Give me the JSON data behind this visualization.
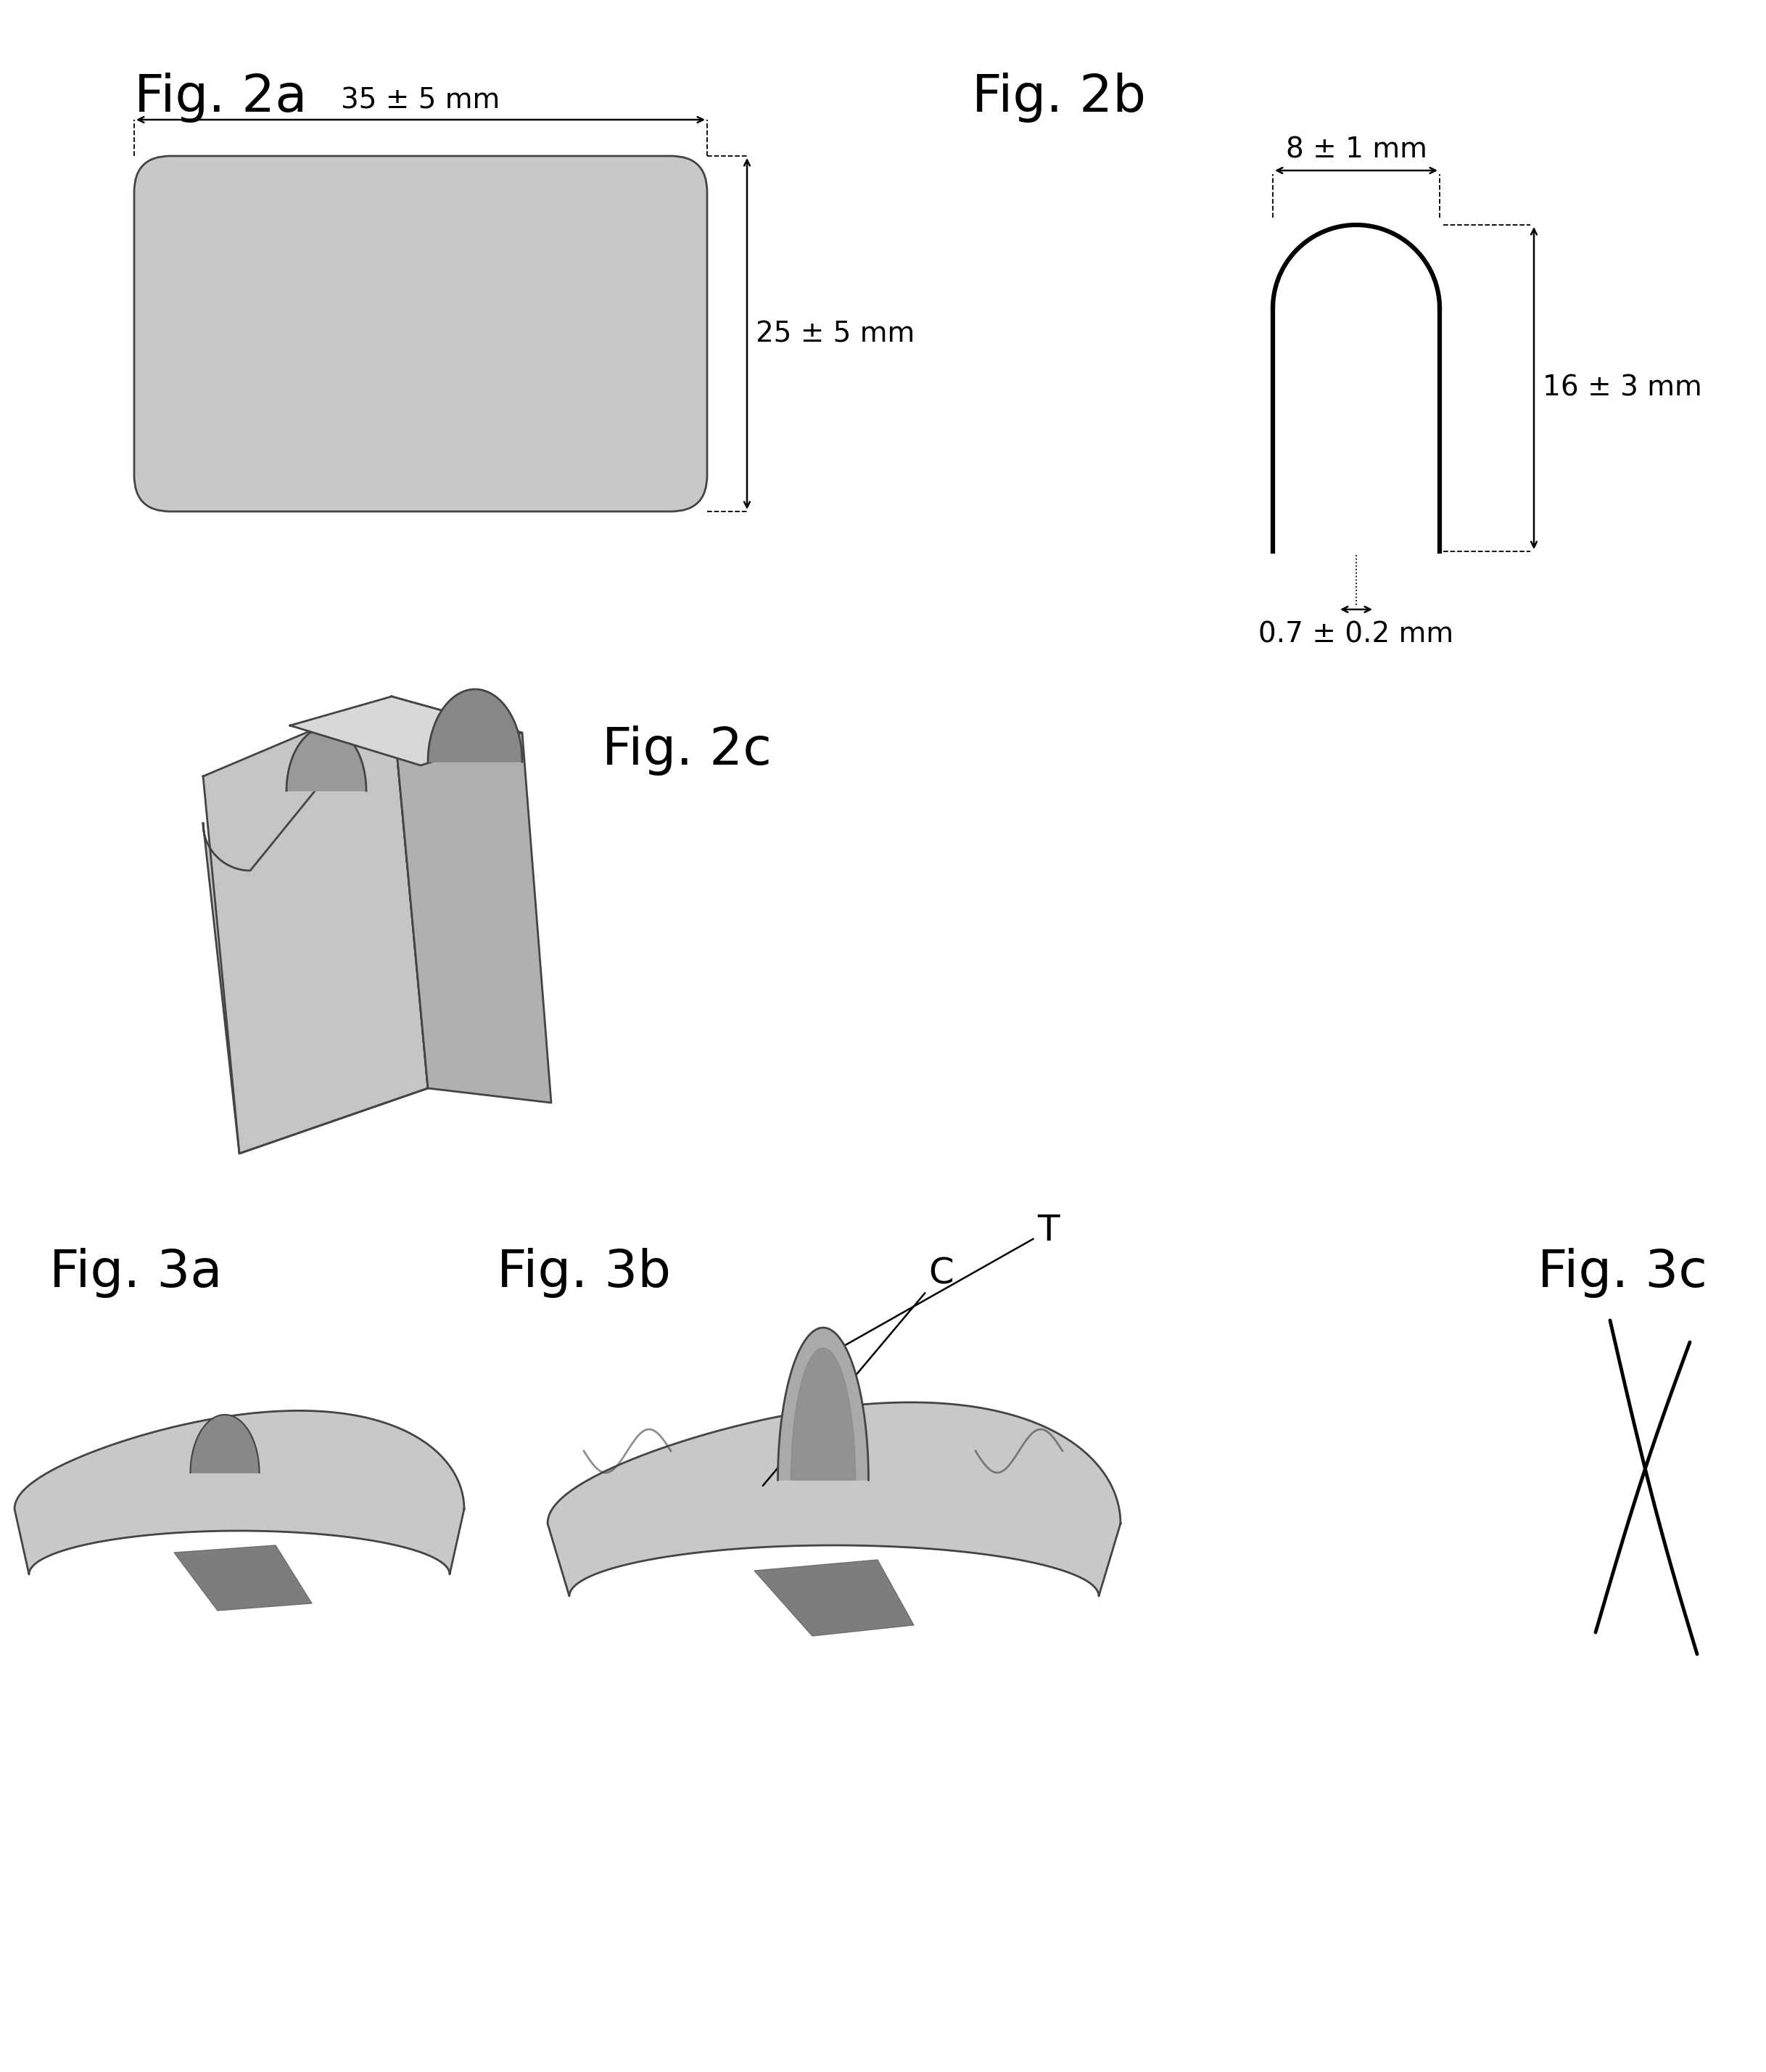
{
  "bg_color": "#ffffff",
  "gray_light": "#c8c8c8",
  "gray_mid": "#aaaaaa",
  "gray_dark": "#888888",
  "gray_darker": "#666666",
  "gray_darkest": "#444444",
  "lc": "#000000",
  "labels": {
    "fig2a": "Fig. 2a",
    "fig2b": "Fig. 2b",
    "fig2c": "Fig. 2c",
    "fig3a": "Fig. 3a",
    "fig3b": "Fig. 3b",
    "fig3c": "Fig. 3c"
  },
  "dims": {
    "w35": "35 ± 5 mm",
    "h25": "25 ± 5 mm",
    "w8": "8 ± 1 mm",
    "h16": "16 ± 3 mm",
    "t07": "0.7 ± 0.2 mm"
  },
  "font_label": 52,
  "font_dim": 28,
  "font_annotation": 36
}
